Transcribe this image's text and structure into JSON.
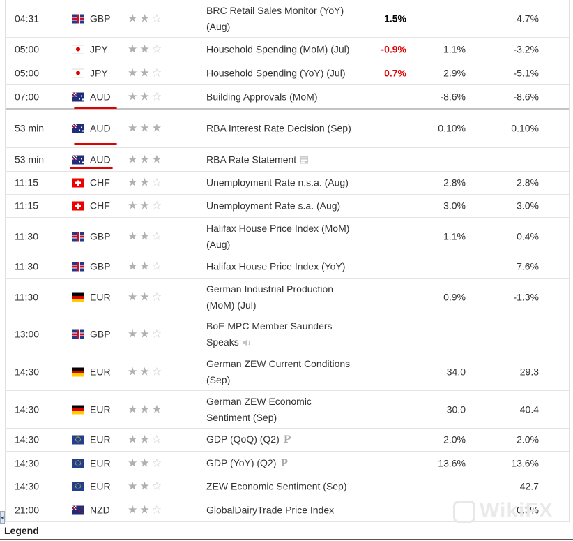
{
  "rows": [
    {
      "time": "04:31",
      "flag": "gbp",
      "currency": "GBP",
      "stars": 2,
      "event": "BRC Retail Sales Monitor (YoY) (Aug)",
      "actual": "1.5%",
      "actual_color": "#000000",
      "forecast": "",
      "previous": "4.7%",
      "icon": "",
      "h": 53,
      "underline": false
    },
    {
      "time": "05:00",
      "flag": "jpy",
      "currency": "JPY",
      "stars": 2,
      "event": "Household Spending (MoM) (Jul)",
      "actual": "-0.9%",
      "actual_color": "#e00000",
      "forecast": "1.1%",
      "previous": "-3.2%",
      "icon": "",
      "h": 33,
      "underline": false
    },
    {
      "time": "05:00",
      "flag": "jpy",
      "currency": "JPY",
      "stars": 2,
      "event": "Household Spending (YoY) (Jul)",
      "actual": "0.7%",
      "actual_color": "#e00000",
      "forecast": "2.9%",
      "previous": "-5.1%",
      "icon": "",
      "h": 33,
      "underline": false
    },
    {
      "time": "07:00",
      "flag": "aud",
      "currency": "AUD",
      "stars": 2,
      "event": "Building Approvals (MoM)",
      "actual": "",
      "actual_color": "#000000",
      "forecast": "-8.6%",
      "previous": "-8.6%",
      "icon": "",
      "h": 33,
      "underline": true,
      "sep": true
    },
    {
      "time": "53 min",
      "flag": "aud",
      "currency": "AUD",
      "stars": 3,
      "event": "RBA Interest Rate Decision (Sep)",
      "actual": "",
      "actual_color": "#000000",
      "forecast": "0.10%",
      "previous": "0.10%",
      "icon": "",
      "h": 54,
      "underline": true
    },
    {
      "time": "53 min",
      "flag": "aud",
      "currency": "AUD",
      "stars": 3,
      "event": "RBA Rate Statement",
      "actual": "",
      "actual_color": "#000000",
      "forecast": "",
      "previous": "",
      "icon": "document-icon",
      "h": 33,
      "underline": true
    },
    {
      "time": "11:15",
      "flag": "chf",
      "currency": "CHF",
      "stars": 2,
      "event": "Unemployment Rate n.s.a. (Aug)",
      "actual": "",
      "actual_color": "#000000",
      "forecast": "2.8%",
      "previous": "2.8%",
      "icon": "",
      "h": 32,
      "underline": false
    },
    {
      "time": "11:15",
      "flag": "chf",
      "currency": "CHF",
      "stars": 2,
      "event": "Unemployment Rate s.a. (Aug)",
      "actual": "",
      "actual_color": "#000000",
      "forecast": "3.0%",
      "previous": "3.0%",
      "icon": "",
      "h": 32,
      "underline": false
    },
    {
      "time": "11:30",
      "flag": "gbp",
      "currency": "GBP",
      "stars": 2,
      "event": "Halifax House Price Index (MoM) (Aug)",
      "actual": "",
      "actual_color": "#000000",
      "forecast": "1.1%",
      "previous": "0.4%",
      "icon": "",
      "h": 53,
      "underline": false
    },
    {
      "time": "11:30",
      "flag": "gbp",
      "currency": "GBP",
      "stars": 2,
      "event": "Halifax House Price Index (YoY)",
      "actual": "",
      "actual_color": "#000000",
      "forecast": "",
      "previous": "7.6%",
      "icon": "",
      "h": 32,
      "underline": false
    },
    {
      "time": "11:30",
      "flag": "eur-de",
      "currency": "EUR",
      "stars": 2,
      "event": "German Industrial Production (MoM) (Jul)",
      "actual": "",
      "actual_color": "#000000",
      "forecast": "0.9%",
      "previous": "-1.3%",
      "icon": "",
      "h": 53,
      "underline": false
    },
    {
      "time": "13:00",
      "flag": "gbp",
      "currency": "GBP",
      "stars": 2,
      "event": "BoE MPC Member Saunders Speaks",
      "actual": "",
      "actual_color": "#000000",
      "forecast": "",
      "previous": "",
      "icon": "speaker-icon",
      "h": 52,
      "underline": false
    },
    {
      "time": "14:30",
      "flag": "eur-de",
      "currency": "EUR",
      "stars": 2,
      "event": "German ZEW Current Conditions (Sep)",
      "actual": "",
      "actual_color": "#000000",
      "forecast": "34.0",
      "previous": "29.3",
      "icon": "",
      "h": 53,
      "underline": false
    },
    {
      "time": "14:30",
      "flag": "eur-de",
      "currency": "EUR",
      "stars": 3,
      "event": "German ZEW Economic Sentiment (Sep)",
      "actual": "",
      "actual_color": "#000000",
      "forecast": "30.0",
      "previous": "40.4",
      "icon": "",
      "h": 53,
      "underline": false
    },
    {
      "time": "14:30",
      "flag": "eur-eu",
      "currency": "EUR",
      "stars": 2,
      "event": "GDP (QoQ) (Q2)",
      "actual": "",
      "actual_color": "#000000",
      "forecast": "2.0%",
      "previous": "2.0%",
      "icon": "preliminary-icon",
      "h": 32,
      "underline": false
    },
    {
      "time": "14:30",
      "flag": "eur-eu",
      "currency": "EUR",
      "stars": 2,
      "event": "GDP (YoY) (Q2)",
      "actual": "",
      "actual_color": "#000000",
      "forecast": "13.6%",
      "previous": "13.6%",
      "icon": "preliminary-icon",
      "h": 33,
      "underline": false
    },
    {
      "time": "14:30",
      "flag": "eur-eu",
      "currency": "EUR",
      "stars": 2,
      "event": "ZEW Economic Sentiment (Sep)",
      "actual": "",
      "actual_color": "#000000",
      "forecast": "",
      "previous": "42.7",
      "icon": "",
      "h": 32,
      "underline": false
    },
    {
      "time": "21:00",
      "flag": "nzd",
      "currency": "NZD",
      "stars": 2,
      "event": "GlobalDairyTrade Price Index",
      "actual": "",
      "actual_color": "#000000",
      "forecast": "",
      "previous": "0.3%",
      "icon": "",
      "h": 33,
      "underline": false
    }
  ],
  "preliminary_glyph": "P",
  "legend": "Legend",
  "scroll_glyph": "◂",
  "watermark": "WikiFX"
}
